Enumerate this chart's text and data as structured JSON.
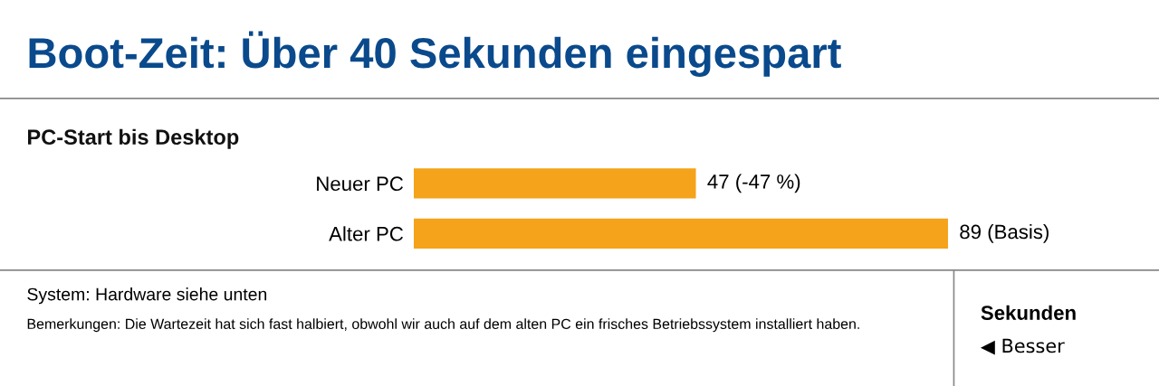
{
  "chart_data": {
    "type": "bar",
    "orientation": "horizontal",
    "title": "Boot-Zeit: Über 40 Sekunden eingespart",
    "subtitle": "PC-Start bis Desktop",
    "categories": [
      "Neuer PC",
      "Alter PC"
    ],
    "values": [
      47,
      89
    ],
    "color": "#f5a31a",
    "value_labels": [
      "47 (-47 %)",
      "89 (Basis)"
    ],
    "annotations": [
      "System: Hardware siehe unten",
      "Bemerkungen: Die Wartezeit hat sich fast halbiert, obwohl wir auch auf dem alten PC ein frisches Betriebssystem installiert haben.",
      "Sekunden",
      "◀ Besser"
    ]
  }
}
